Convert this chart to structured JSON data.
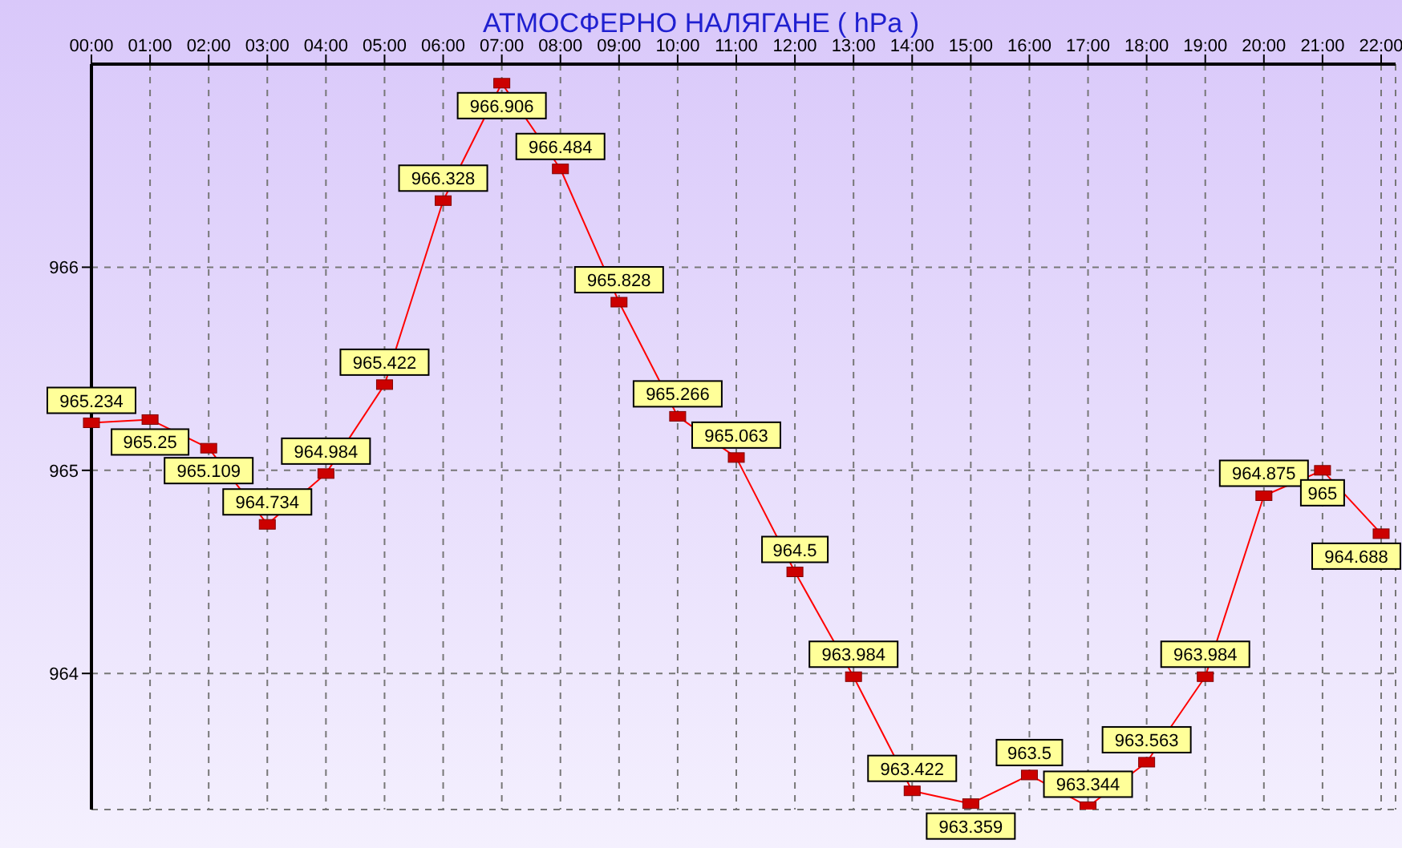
{
  "chart_data": {
    "type": "line",
    "title": "АТМОСФЕРНО НАЛЯГАНЕ  ( hPa )",
    "categories": [
      "00:00",
      "01:00",
      "02:00",
      "03:00",
      "04:00",
      "05:00",
      "06:00",
      "07:00",
      "08:00",
      "09:00",
      "10:00",
      "11:00",
      "12:00",
      "13:00",
      "14:00",
      "15:00",
      "16:00",
      "17:00",
      "18:00",
      "19:00",
      "20:00",
      "21:00",
      "22:00"
    ],
    "series": [
      {
        "color": "#ff0000",
        "values": [
          965.234,
          965.25,
          965.109,
          964.734,
          964.984,
          965.422,
          966.328,
          966.906,
          966.484,
          965.828,
          965.266,
          965.063,
          964.5,
          963.984,
          963.422,
          963.359,
          963.5,
          963.344,
          963.563,
          963.984,
          964.875,
          965,
          964.688
        ]
      }
    ],
    "ylim": [
      963.33,
      967.0
    ],
    "yticks": [
      964,
      965,
      966
    ],
    "grid": true,
    "marker": "square",
    "line_style": "solid",
    "data_labels": true,
    "legend": false
  }
}
